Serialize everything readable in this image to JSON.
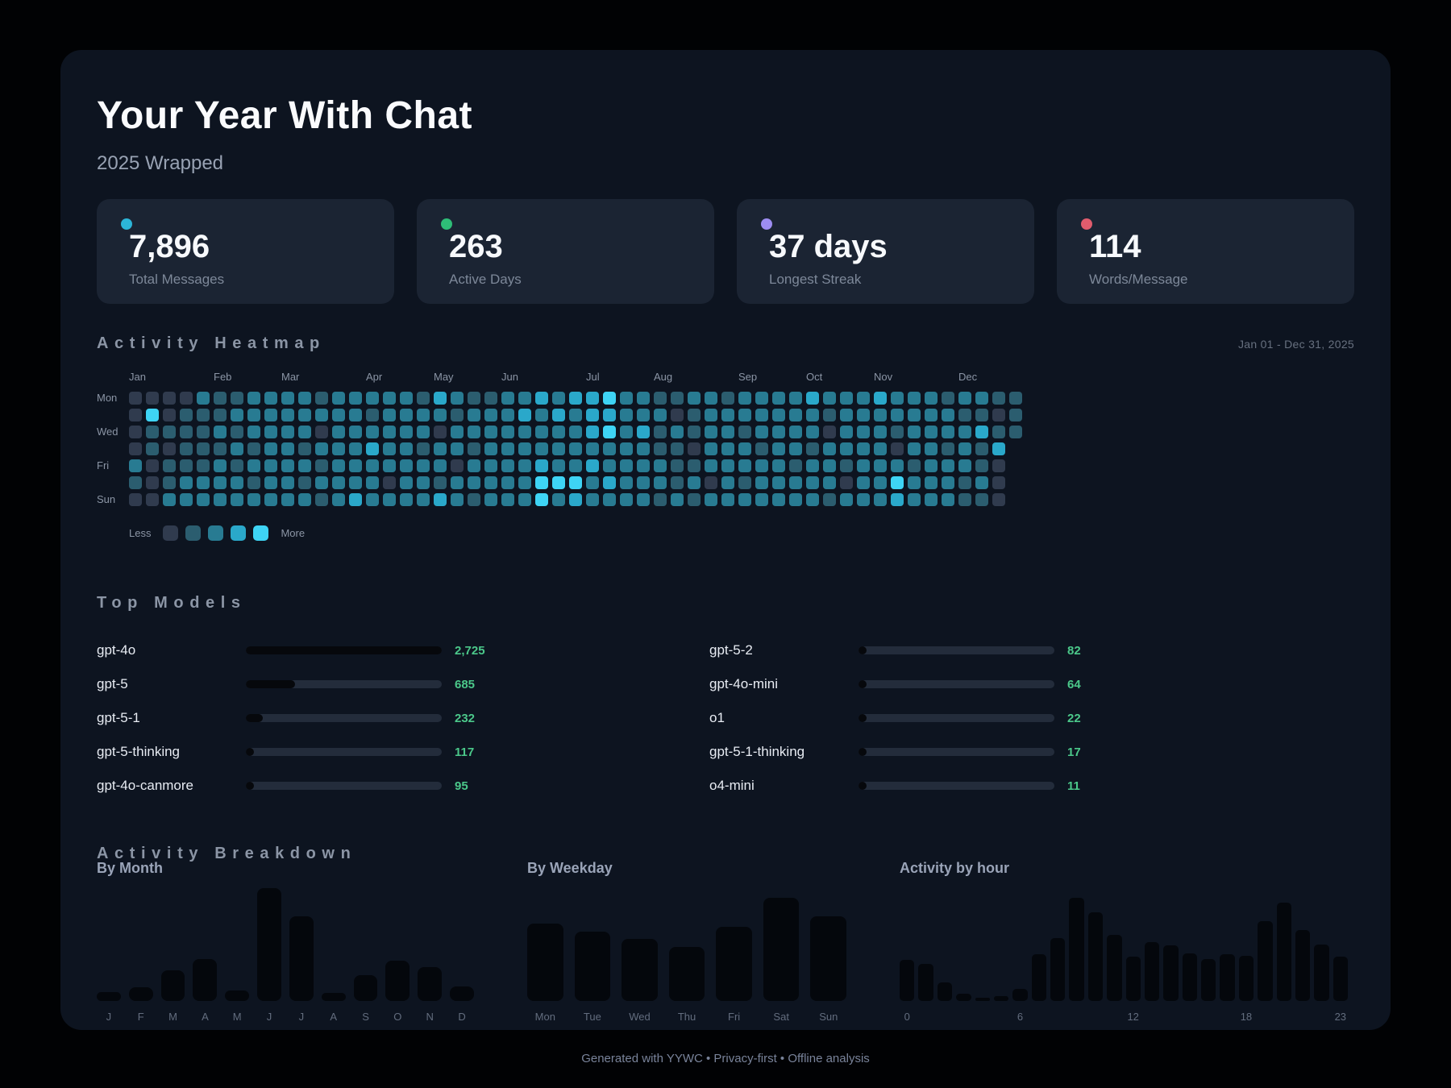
{
  "app": {
    "title": "Your Year With Chat",
    "subtitle": "2025 Wrapped",
    "footer": "Generated with YYWC  •  Privacy-first  •  Offline analysis"
  },
  "sections": {
    "breakdown": "Activity Breakdown"
  },
  "stats": [
    {
      "value": "7,896",
      "label": "Total Messages",
      "dot_color": "#2cb5d8"
    },
    {
      "value": "263",
      "label": "Active Days",
      "dot_color": "#2ebd77"
    },
    {
      "value": "37 days",
      "label": "Longest Streak",
      "dot_color": "#9d8df1"
    },
    {
      "value": "114",
      "label": "Words/Message",
      "dot_color": "#e05c6d"
    }
  ],
  "chart_data": [
    {
      "id": "activity_heatmap",
      "type": "heatmap",
      "title": "Activity Heatmap",
      "subtitle": "Jan 01 - Dec 31, 2025",
      "rows": [
        "Mon",
        "Tue",
        "Wed",
        "Thu",
        "Fri",
        "Sat",
        "Sun"
      ],
      "row_labels_shown": [
        "Mon",
        "Wed",
        "Fri",
        "Sun"
      ],
      "weeks": 53,
      "month_ticks": [
        {
          "label": "Jan",
          "week": 0
        },
        {
          "label": "Feb",
          "week": 5
        },
        {
          "label": "Mar",
          "week": 9
        },
        {
          "label": "Apr",
          "week": 14
        },
        {
          "label": "May",
          "week": 18
        },
        {
          "label": "Jun",
          "week": 22
        },
        {
          "label": "Jul",
          "week": 27
        },
        {
          "label": "Aug",
          "week": 31
        },
        {
          "label": "Sep",
          "week": 36
        },
        {
          "label": "Oct",
          "week": 40
        },
        {
          "label": "Nov",
          "week": 44
        },
        {
          "label": "Dec",
          "week": 49
        }
      ],
      "level_colors": [
        "#303b4e",
        "#2b5d6f",
        "#287b92",
        "#2aa8ca",
        "#3ed4f5"
      ],
      "legend": {
        "less": "Less",
        "more": "More"
      },
      "cells_note": "levels 0-4 estimated visually from screenshot; x = no day rendered",
      "cells": {
        "Mon": [
          "00002",
          "1122",
          "2212",
          "2222",
          "13211",
          "2232",
          "33422",
          "1122",
          "1222",
          "23222",
          "3222",
          "12211"
        ],
        "Tue": [
          "04011",
          "1222",
          "2222",
          "2122",
          "22122",
          "2323",
          "23322",
          "2012",
          "2222",
          "22122",
          "2222",
          "21101"
        ],
        "Wed": [
          "01111",
          "2122",
          "2202",
          "2222",
          "20222",
          "2222",
          "23423",
          "1212",
          "2122",
          "22022",
          "2122",
          "22311"
        ],
        "Thu": [
          "01011",
          "1212",
          "2122",
          "2322",
          "12212",
          "2222",
          "22222",
          "1102",
          "2212",
          "21222",
          "2022",
          "1213x"
        ],
        "Fri": [
          "20111",
          "2122",
          "2212",
          "2222",
          "22022",
          "2232",
          "23222",
          "2112",
          "2222",
          "12212",
          "2212",
          "2210x"
        ],
        "Sat": [
          "10122",
          "2212",
          "2122",
          "2202",
          "21222",
          "2244",
          "42322",
          "2120",
          "2122",
          "22202",
          "2422",
          "2120x"
        ],
        "Sun": [
          "00222",
          "2222",
          "2212",
          "3222",
          "23212",
          "2242",
          "32222",
          "1212",
          "2222",
          "22122",
          "2322",
          "2110x"
        ]
      }
    },
    {
      "id": "top_models",
      "type": "bar",
      "orientation": "horizontal",
      "title": "Top Models",
      "max_value": 2725,
      "column_split": 5,
      "value_color": "#4bc88a",
      "items": [
        {
          "name": "gpt-4o",
          "value": 2725,
          "display": "2,725"
        },
        {
          "name": "gpt-5",
          "value": 685,
          "display": "685"
        },
        {
          "name": "gpt-5-1",
          "value": 232,
          "display": "232"
        },
        {
          "name": "gpt-5-thinking",
          "value": 117,
          "display": "117"
        },
        {
          "name": "gpt-4o-canmore",
          "value": 95,
          "display": "95"
        },
        {
          "name": "gpt-5-2",
          "value": 82,
          "display": "82"
        },
        {
          "name": "gpt-4o-mini",
          "value": 64,
          "display": "64"
        },
        {
          "name": "o1",
          "value": 22,
          "display": "22"
        },
        {
          "name": "gpt-5-1-thinking",
          "value": 17,
          "display": "17"
        },
        {
          "name": "o4-mini",
          "value": 11,
          "display": "11"
        }
      ]
    },
    {
      "id": "by_month",
      "type": "bar",
      "title": "By Month",
      "categories": [
        "J",
        "F",
        "M",
        "A",
        "M",
        "J",
        "J",
        "A",
        "S",
        "O",
        "N",
        "D"
      ],
      "values_pct_of_max": [
        8,
        12,
        27,
        37,
        9,
        100,
        75,
        7,
        23,
        36,
        30,
        13
      ],
      "values_estimated": true,
      "ylabel": "",
      "xlabel": ""
    },
    {
      "id": "by_weekday",
      "type": "bar",
      "title": "By Weekday",
      "categories": [
        "Mon",
        "Tue",
        "Wed",
        "Thu",
        "Fri",
        "Sat",
        "Sun"
      ],
      "values_pct_of_max": [
        75,
        67,
        60,
        52,
        72,
        100,
        82
      ],
      "values_estimated": true,
      "ylabel": "",
      "xlabel": ""
    },
    {
      "id": "by_hour",
      "type": "bar",
      "title": "Activity by hour",
      "categories": [
        "0",
        "1",
        "2",
        "3",
        "4",
        "5",
        "6",
        "7",
        "8",
        "9",
        "10",
        "11",
        "12",
        "13",
        "14",
        "15",
        "16",
        "17",
        "18",
        "19",
        "20",
        "21",
        "22",
        "23"
      ],
      "tick_positions": [
        0,
        6,
        12,
        18,
        23
      ],
      "values_pct_of_max": [
        40,
        36,
        18,
        7,
        3,
        5,
        12,
        45,
        61,
        100,
        86,
        64,
        43,
        57,
        54,
        46,
        41,
        45,
        44,
        77,
        95,
        69,
        55,
        43
      ],
      "values_estimated": true,
      "ylabel": "",
      "xlabel": ""
    }
  ]
}
